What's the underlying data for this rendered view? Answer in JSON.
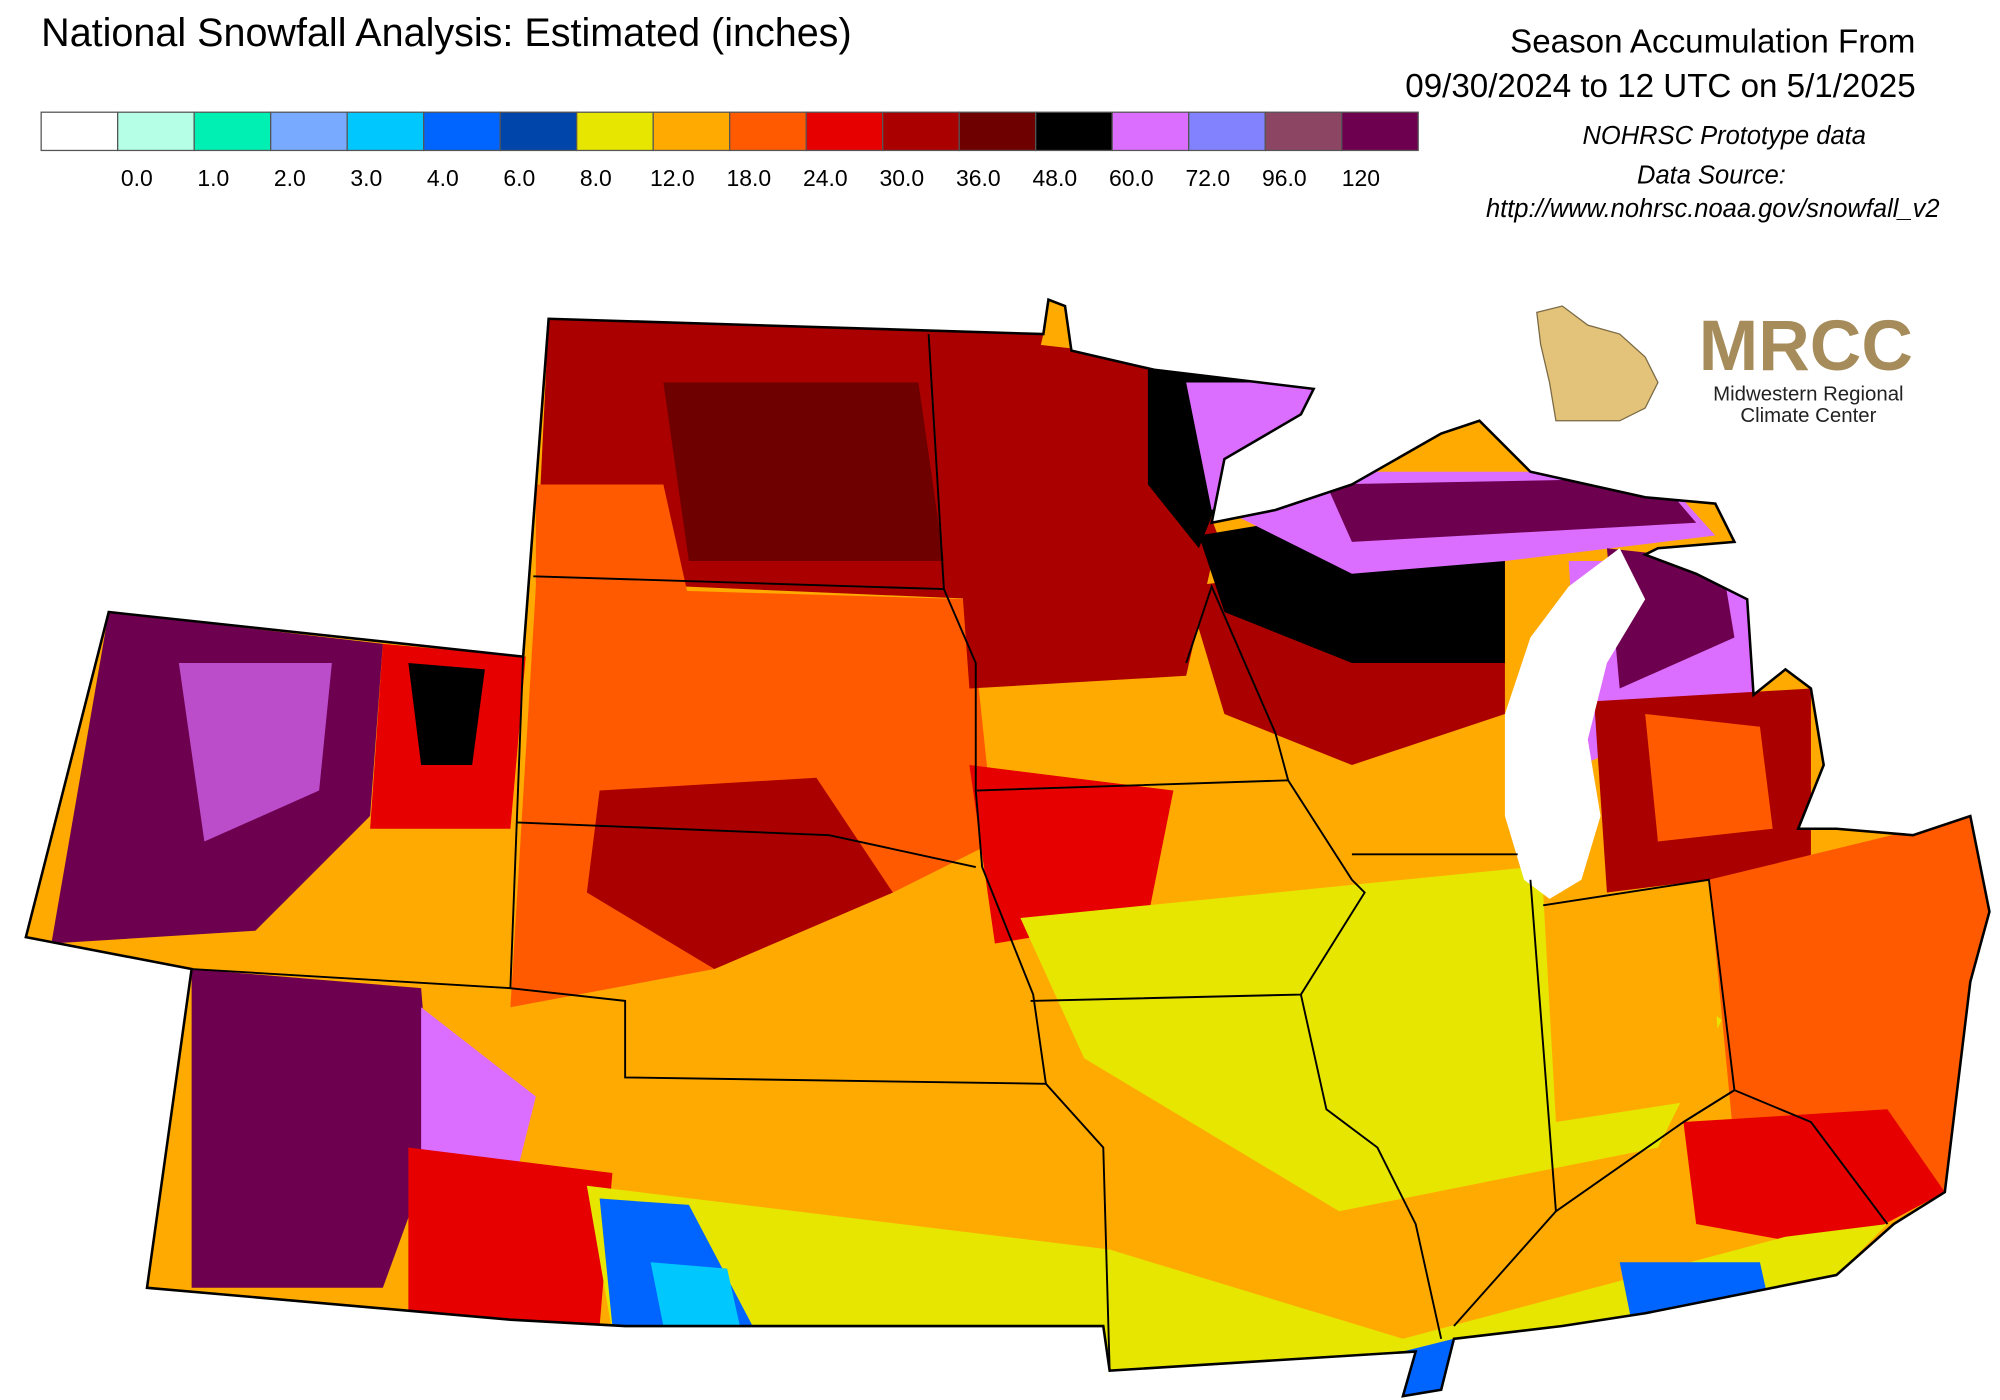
{
  "title": "National Snowfall Analysis: Estimated (inches)",
  "period": {
    "line1": "Season Accumulation From",
    "line2": "09/30/2024 to 12 UTC on 5/1/2025"
  },
  "source": {
    "note": "NOHRSC Prototype data",
    "label": "Data Source:",
    "url": "http://www.nohrsc.noaa.gov/snowfall_v2"
  },
  "legend": {
    "colors": [
      "#ffffff",
      "#b4ffe6",
      "#00f0b4",
      "#78aaff",
      "#00c8ff",
      "#0064ff",
      "#0046aa",
      "#e6e600",
      "#ffaa00",
      "#ff5a00",
      "#e60000",
      "#aa0000",
      "#6e0000",
      "#000000",
      "#dc6eff",
      "#8282ff",
      "#8c4664",
      "#6e0050"
    ],
    "labels": [
      "0.0",
      "1.0",
      "2.0",
      "3.0",
      "4.0",
      "6.0",
      "8.0",
      "12.0",
      "18.0",
      "24.0",
      "30.0",
      "36.0",
      "48.0",
      "60.0",
      "72.0",
      "96.0",
      "120"
    ]
  },
  "logo": {
    "name": "MRCC",
    "line1": "Midwestern Regional",
    "line2": "Climate Center"
  }
}
